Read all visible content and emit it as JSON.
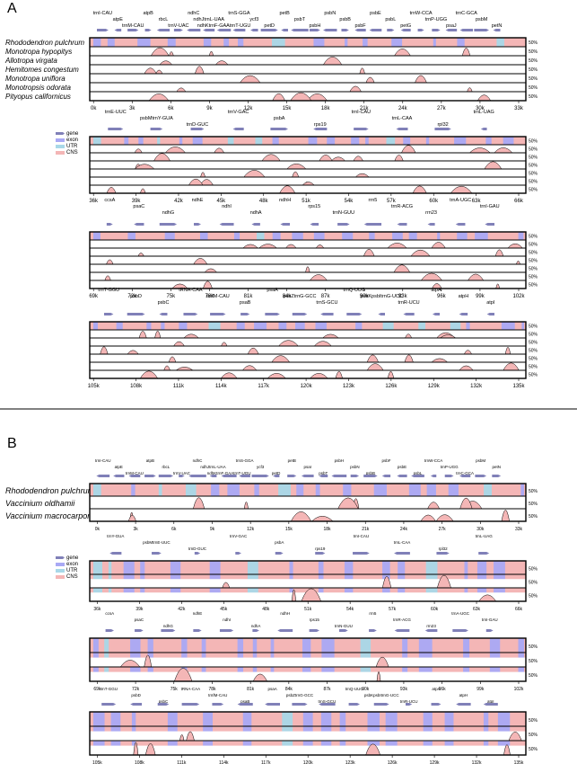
{
  "panels": [
    {
      "letter": "A",
      "species": [
        "Rhododendron pulchrum",
        "Monotropa hypopitys",
        "Allotropa virgata",
        "Hemitomes congestum",
        "Monotropa uniflora",
        "Monotropsis odorata",
        "Pityopus californicus"
      ],
      "legend": [
        "gene",
        "exon",
        "UTR",
        "CNS"
      ],
      "rows": [
        {
          "xticks": [
            "0k",
            "3k",
            "6k",
            "9k",
            "12k",
            "15k",
            "18k",
            "21k",
            "24k",
            "27k",
            "30k",
            "33k"
          ],
          "genes": [
            "trnI-CAU",
            "atpE",
            "trnM-CAU",
            "atpB",
            "rbcL",
            "trnV-UAC",
            "ndhC",
            "ndhJtrnL-UAA",
            "ndhKtrnF-GAAtrnT-UGU",
            "trnS-GGA",
            "ycf3",
            "petD",
            "petB",
            "psbT",
            "psbH",
            "psbN",
            "psbB",
            "psbF",
            "psbE",
            "psbL",
            "petG",
            "trnW-CCA",
            "trnP-UGG",
            "psaJ",
            "trnC-GCA",
            "psbM",
            "petN"
          ]
        },
        {
          "xticks": [
            "36k",
            "39k",
            "42k",
            "45k",
            "48k",
            "51k",
            "54k",
            "57k",
            "60k",
            "63k",
            "66k"
          ],
          "genes": [
            "trnE-UUC",
            "psbMtrnY-GUA",
            "trnD-GUC",
            "trnV-GAC",
            "psbA",
            "rps19",
            "trnI-CAU",
            "trnL-CAA",
            "rpl32",
            "trnL-UAG"
          ]
        },
        {
          "xticks": [
            "69k",
            "72k",
            "75k",
            "78k",
            "81k",
            "84k",
            "87k",
            "90k",
            "93k",
            "96k",
            "99k",
            "102k"
          ],
          "genes": [
            "ccsA",
            "psaC",
            "ndhG",
            "ndhE",
            "ndhI",
            "ndhA",
            "ndhH",
            "rps15",
            "trnN-GUU",
            "rrn5",
            "trnR-ACG",
            "rrn23",
            "trnA-UGC",
            "trnI-GAU"
          ]
        },
        {
          "xticks": [
            "105k",
            "108k",
            "111k",
            "114k",
            "117k",
            "120k",
            "123k",
            "126k",
            "129k",
            "132k",
            "135k"
          ],
          "genes": [
            "trnT-GGU",
            "psbD",
            "psbC",
            "tRNA-CAA",
            "trnfM-CAU",
            "psaB",
            "psaA",
            "psbZtrnG-GCC",
            "trnS-GCU",
            "trnQ-UUG",
            "psbKpsbItrnG-UCC",
            "trnR-UCU",
            "atpA",
            "atpH",
            "atpI"
          ]
        }
      ]
    },
    {
      "letter": "B",
      "species": [
        "Rhododendron pulchrum",
        "Vaccinium oldhamii",
        "Vaccinium macrocarpon"
      ],
      "legend": [
        "gene",
        "exon",
        "UTR",
        "CNS"
      ],
      "rows": [
        {
          "xticks": [
            "0k",
            "3k",
            "6k",
            "9k",
            "12k",
            "15k",
            "18k",
            "21k",
            "24k",
            "27k",
            "30k",
            "33k"
          ],
          "genes": [
            "trnI-CAU",
            "atpE",
            "trnM-CAU",
            "atpB",
            "rbcL",
            "trnV-UAC",
            "ndhC",
            "ndhJtrnL-UAA",
            "ndhKtrnF-GAAtrnT-UGU",
            "trnS-GGA",
            "ycf3",
            "petD",
            "petB",
            "psaI",
            "psbT",
            "psbH",
            "psbN",
            "psbB",
            "psbF",
            "psbE",
            "psbL",
            "trnW-CCA",
            "trnP-UGG",
            "trnC-GCA",
            "psbM",
            "petN"
          ]
        },
        {
          "xticks": [
            "36k",
            "39k",
            "42k",
            "45k",
            "48k",
            "51k",
            "54k",
            "57k",
            "60k",
            "63k",
            "66k"
          ],
          "genes": [
            "trnY-GUA",
            "psbMtrnE-UUC",
            "trnD-GUC",
            "trnV-GAC",
            "psbA",
            "rps19",
            "trnI-CAU",
            "trnL-CAA",
            "rpl32",
            "trnL-UAG"
          ]
        },
        {
          "xticks": [
            "69k",
            "72k",
            "75k",
            "78k",
            "81k",
            "84k",
            "87k",
            "90k",
            "93k",
            "96k",
            "99k",
            "102k"
          ],
          "genes": [
            "ccsA",
            "psaC",
            "ndhG",
            "ndhE",
            "ndhI",
            "ndhA",
            "ndhH",
            "rps15",
            "trnN-GUU",
            "rrn5",
            "trnR-ACG",
            "rrn23",
            "trnA-UGC",
            "trnI-GAU"
          ]
        },
        {
          "xticks": [
            "105k",
            "108k",
            "111k",
            "114k",
            "117k",
            "120k",
            "123k",
            "126k",
            "129k",
            "132k",
            "135k"
          ],
          "genes": [
            "trnT-GGU",
            "psbD",
            "psbC",
            "tRNA-CAA",
            "trnfM-CAU",
            "psaB",
            "psaA",
            "psbZtrnG-GCC",
            "trnS-GCU",
            "trnQ-UUG",
            "psbKpsbItrnG-UCC",
            "trnR-UCU",
            "atpA",
            "atpH",
            "atpI"
          ]
        }
      ]
    }
  ],
  "pct_label": "50%",
  "colors": {
    "gene": "#8080b8",
    "exon": "#a9a9f5",
    "utr": "#a8d8e8",
    "cns": "#f4b6b6",
    "frame": "#000000"
  },
  "chart_data": [
    {
      "type": "area",
      "title": "A",
      "series": [
        {
          "name": "Rhododendron pulchrum"
        },
        {
          "name": "Monotropa hypopitys"
        },
        {
          "name": "Allotropa virgata"
        },
        {
          "name": "Hemitomes congestum"
        },
        {
          "name": "Monotropa uniflora"
        },
        {
          "name": "Monotropsis odorata"
        },
        {
          "name": "Pityopus californicus"
        }
      ],
      "y_tick": "50%",
      "x_ranges_k": [
        [
          0,
          34
        ],
        [
          34,
          67
        ],
        [
          67,
          102
        ],
        [
          102,
          136
        ]
      ]
    },
    {
      "type": "area",
      "title": "B",
      "series": [
        {
          "name": "Rhododendron pulchrum"
        },
        {
          "name": "Vaccinium oldhamii"
        },
        {
          "name": "Vaccinium macrocarpon"
        }
      ],
      "y_tick": "50%",
      "x_ranges_k": [
        [
          0,
          34
        ],
        [
          34,
          67
        ],
        [
          67,
          102
        ],
        [
          102,
          136
        ]
      ]
    }
  ]
}
